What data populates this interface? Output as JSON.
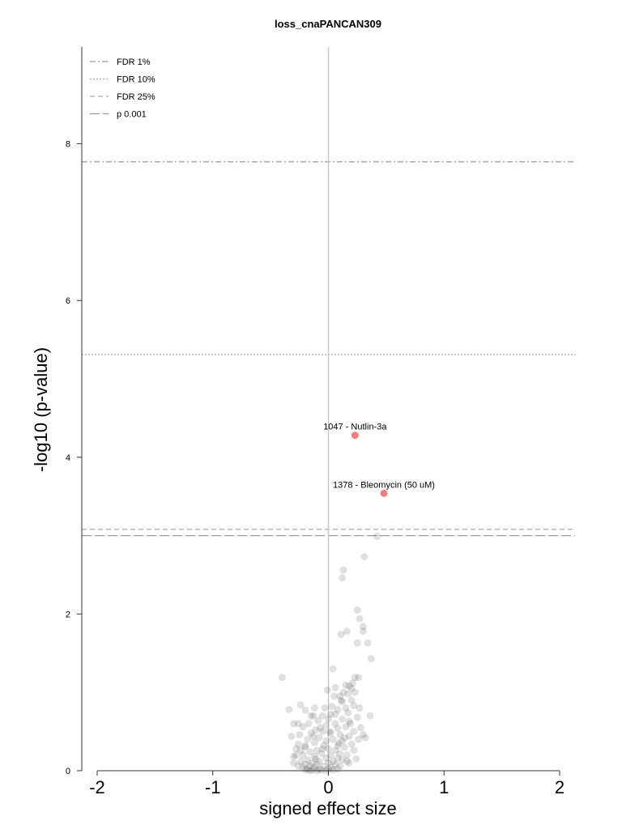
{
  "chart_data": {
    "type": "scatter",
    "title": "loss_cnaPANCAN309",
    "xlabel": "signed effect size",
    "ylabel": "-log10 (p-value)",
    "xlim": [
      -2.1,
      2.12
    ],
    "ylim": [
      0,
      8.0
    ],
    "xticks": [
      -2,
      -1,
      0,
      1,
      2
    ],
    "yticks": [
      0,
      2,
      4,
      6,
      8
    ],
    "x_zero_line": true,
    "grid": false,
    "legend_position": "top-left",
    "thresholds": [
      {
        "name": "FDR 1%",
        "y": 7.77,
        "style": "dashdot"
      },
      {
        "name": "FDR 10%",
        "y": 5.31,
        "style": "dotted"
      },
      {
        "name": "FDR 25%",
        "y": 3.08,
        "style": "dashed"
      },
      {
        "name": "p 0.001",
        "y": 3.0,
        "style": "longdash"
      }
    ],
    "highlighted": [
      {
        "x": 0.23,
        "y": 4.28,
        "label": "1047 - Nutlin-3a",
        "color": "#f08080"
      },
      {
        "x": 0.48,
        "y": 3.54,
        "label": "1378 - Bleomycin (50 uM)",
        "color": "#f08080"
      }
    ],
    "points": [
      [
        0.42,
        2.99
      ],
      [
        0.31,
        2.73
      ],
      [
        0.13,
        2.56
      ],
      [
        0.12,
        2.46
      ],
      [
        0.25,
        2.05
      ],
      [
        0.27,
        1.94
      ],
      [
        0.3,
        1.84
      ],
      [
        0.3,
        1.78
      ],
      [
        0.16,
        1.78
      ],
      [
        0.11,
        1.74
      ],
      [
        0.25,
        1.63
      ],
      [
        0.34,
        1.63
      ],
      [
        0.37,
        1.43
      ],
      [
        0.04,
        1.3
      ],
      [
        0.23,
        1.19
      ],
      [
        0.26,
        1.19
      ],
      [
        -0.4,
        1.19
      ],
      [
        0.21,
        1.12
      ],
      [
        0.15,
        1.09
      ],
      [
        0.18,
        1.08
      ],
      [
        0.2,
        1.05
      ],
      [
        0.13,
        1.0
      ],
      [
        0.23,
        1.0
      ],
      [
        -0.01,
        1.03
      ],
      [
        0.05,
        0.95
      ],
      [
        0.1,
        0.95
      ],
      [
        0.2,
        0.9
      ],
      [
        0.12,
        0.88
      ],
      [
        0.22,
        0.83
      ],
      [
        0.03,
        0.82
      ],
      [
        0.15,
        0.8
      ],
      [
        0.27,
        0.8
      ],
      [
        -0.24,
        0.84
      ],
      [
        -0.2,
        0.77
      ],
      [
        -0.12,
        0.8
      ],
      [
        -0.03,
        0.8
      ],
      [
        0.08,
        0.78
      ],
      [
        -0.34,
        0.78
      ],
      [
        0.17,
        0.74
      ],
      [
        0.06,
        0.72
      ],
      [
        -0.13,
        0.7
      ],
      [
        -0.05,
        0.7
      ],
      [
        0.0,
        0.66
      ],
      [
        0.12,
        0.66
      ],
      [
        0.36,
        0.7
      ],
      [
        0.25,
        0.68
      ],
      [
        0.18,
        0.63
      ],
      [
        -0.09,
        0.64
      ],
      [
        -0.17,
        0.6
      ],
      [
        -0.26,
        0.6
      ],
      [
        -0.3,
        0.6
      ],
      [
        -0.22,
        0.56
      ],
      [
        0.06,
        0.6
      ],
      [
        -0.02,
        0.58
      ],
      [
        0.08,
        0.54
      ],
      [
        0.15,
        0.56
      ],
      [
        0.22,
        0.5
      ],
      [
        -0.11,
        0.52
      ],
      [
        -0.05,
        0.5
      ],
      [
        0.02,
        0.48
      ],
      [
        -0.15,
        0.48
      ],
      [
        -0.25,
        0.46
      ],
      [
        0.1,
        0.46
      ],
      [
        0.18,
        0.44
      ],
      [
        -0.08,
        0.42
      ],
      [
        -0.32,
        0.44
      ],
      [
        0.3,
        0.46
      ],
      [
        0.26,
        0.4
      ],
      [
        -0.18,
        0.4
      ],
      [
        0.04,
        0.4
      ],
      [
        -0.02,
        0.38
      ],
      [
        0.12,
        0.38
      ],
      [
        -0.12,
        0.36
      ],
      [
        -0.26,
        0.34
      ],
      [
        0.2,
        0.34
      ],
      [
        -0.04,
        0.32
      ],
      [
        0.08,
        0.32
      ],
      [
        -0.2,
        0.3
      ],
      [
        0.14,
        0.3
      ],
      [
        -0.28,
        0.28
      ],
      [
        0.0,
        0.28
      ],
      [
        -0.1,
        0.26
      ],
      [
        0.06,
        0.26
      ],
      [
        0.22,
        0.26
      ],
      [
        -0.16,
        0.24
      ],
      [
        -0.06,
        0.22
      ],
      [
        0.1,
        0.22
      ],
      [
        -0.22,
        0.2
      ],
      [
        0.02,
        0.2
      ],
      [
        0.16,
        0.2
      ],
      [
        -0.12,
        0.18
      ],
      [
        -0.3,
        0.18
      ],
      [
        -0.02,
        0.16
      ],
      [
        0.08,
        0.16
      ],
      [
        -0.18,
        0.14
      ],
      [
        0.12,
        0.14
      ],
      [
        -0.08,
        0.12
      ],
      [
        0.04,
        0.12
      ],
      [
        -0.24,
        0.12
      ],
      [
        -0.14,
        0.1
      ],
      [
        0.0,
        0.1
      ],
      [
        0.18,
        0.1
      ],
      [
        -0.2,
        0.08
      ],
      [
        -0.1,
        0.08
      ],
      [
        0.06,
        0.08
      ],
      [
        -0.16,
        0.06
      ],
      [
        -0.04,
        0.06
      ],
      [
        0.1,
        0.06
      ],
      [
        -0.22,
        0.04
      ],
      [
        -0.12,
        0.04
      ],
      [
        0.02,
        0.04
      ],
      [
        -0.18,
        0.02
      ],
      [
        -0.08,
        0.02
      ],
      [
        0.0,
        0.02
      ],
      [
        -0.14,
        0.01
      ],
      [
        -0.2,
        0.01
      ],
      [
        -0.06,
        0.01
      ],
      [
        0.04,
        0.01
      ],
      [
        -0.1,
        0.0
      ],
      [
        -0.16,
        0.0
      ],
      [
        -0.02,
        0.0
      ],
      [
        0.08,
        0.02
      ],
      [
        -0.26,
        0.06
      ],
      [
        -0.28,
        0.2
      ],
      [
        0.14,
        0.42
      ],
      [
        -0.07,
        0.55
      ],
      [
        0.02,
        0.72
      ],
      [
        0.32,
        0.42
      ],
      [
        -0.2,
        0.32
      ],
      [
        0.16,
        0.12
      ],
      [
        -0.11,
        0.15
      ],
      [
        -0.05,
        0.28
      ],
      [
        0.09,
        0.35
      ],
      [
        0.19,
        0.6
      ],
      [
        0.28,
        0.55
      ],
      [
        -0.15,
        0.7
      ],
      [
        -0.3,
        0.1
      ],
      [
        -0.24,
        0.26
      ],
      [
        0.24,
        0.15
      ],
      [
        0.01,
        0.5
      ],
      [
        -0.13,
        0.44
      ],
      [
        0.11,
        0.9
      ],
      [
        0.06,
        1.06
      ],
      [
        0.17,
        0.98
      ]
    ]
  }
}
